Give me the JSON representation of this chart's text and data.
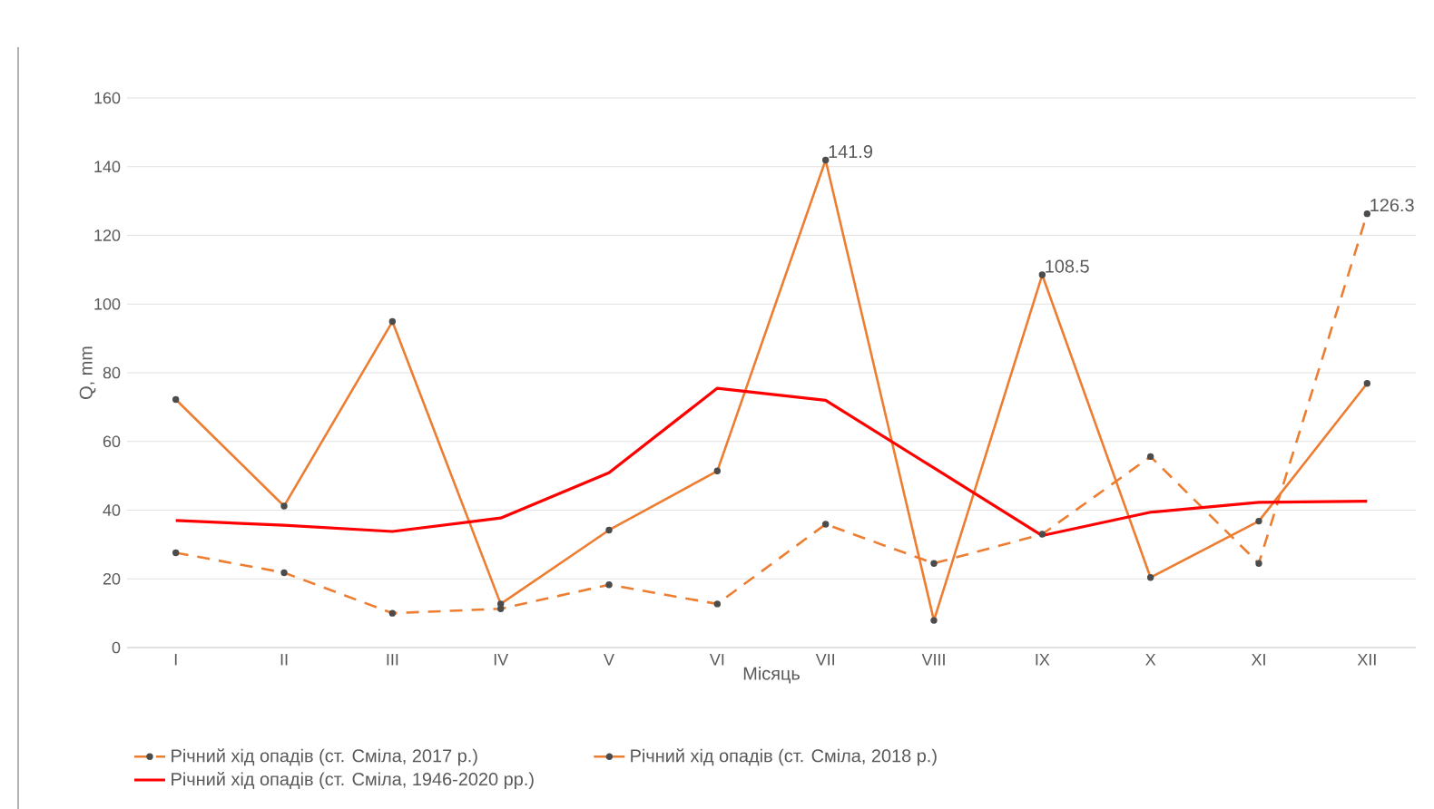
{
  "chart_data": {
    "type": "line",
    "xlabel": "Місяць",
    "ylabel": "Q, mm",
    "categories": [
      "I",
      "II",
      "III",
      "IV",
      "V",
      "VI",
      "VII",
      "VIII",
      "IX",
      "X",
      "XI",
      "XII"
    ],
    "ylim": [
      0,
      160
    ],
    "yticks": [
      0,
      20,
      40,
      60,
      80,
      100,
      120,
      140,
      160
    ],
    "grid": "y",
    "legend": "bottom",
    "series": [
      {
        "name": "Річний хід опадів (ст. Сміла, 2017 р.)",
        "color": "#ed7d31",
        "line_style": "dashed",
        "marker": "circle",
        "values": [
          27.6,
          21.8,
          10,
          11.3,
          18.3,
          12.7,
          35.9,
          24.5,
          33,
          55.6,
          24.5,
          126.3
        ],
        "value_labels": [
          null,
          null,
          null,
          null,
          null,
          null,
          null,
          null,
          null,
          null,
          null,
          "126.3"
        ]
      },
      {
        "name": "Річний хід опадів (ст. Сміла, 2018 р.)",
        "color": "#ed7d31",
        "line_style": "solid",
        "marker": "circle",
        "values": [
          72.2,
          41.2,
          94.9,
          12.7,
          34.2,
          51.4,
          141.9,
          7.9,
          108.5,
          20.4,
          36.8,
          76.9
        ],
        "value_labels": [
          null,
          null,
          null,
          null,
          null,
          null,
          "141.9",
          null,
          "108.5",
          null,
          null,
          null
        ]
      },
      {
        "name": "Річний хід опадів (ст. Сміла, 1946-2020 рр.)",
        "color": "#ff0000",
        "line_style": "solid",
        "marker": "none",
        "values": [
          37,
          35.6,
          33.8,
          37.7,
          50.9,
          75.5,
          72,
          52.3,
          32.6,
          39.4,
          42.3,
          42.6
        ]
      }
    ]
  }
}
